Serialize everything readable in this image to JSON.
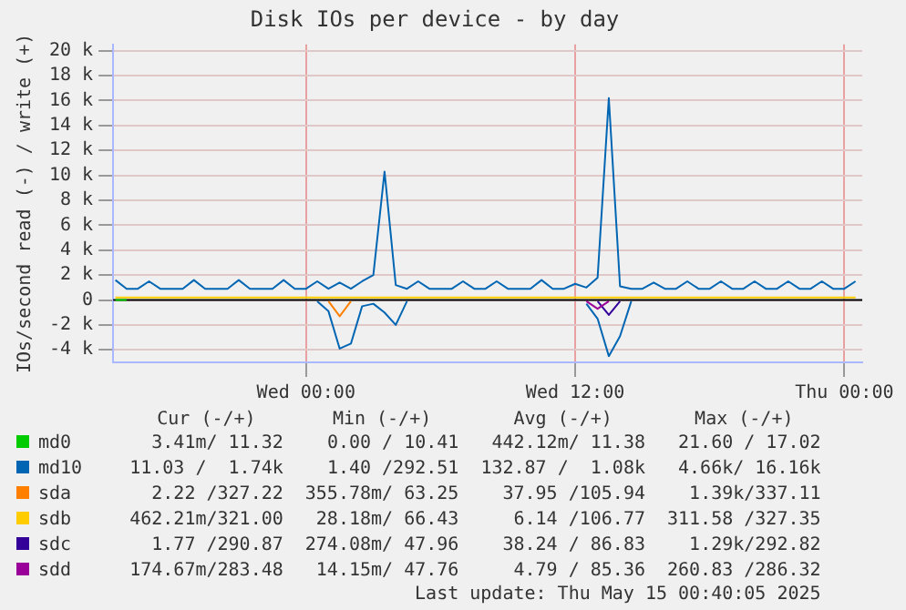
{
  "chart_data": {
    "type": "line",
    "title": "Disk IOs per device - by day",
    "ylabel": "IOs/second read (-) / write (+)",
    "x": [
      "2025-05-13T15:30",
      "2025-05-13T16:00",
      "2025-05-13T16:30",
      "2025-05-13T17:00",
      "2025-05-13T17:30",
      "2025-05-13T18:00",
      "2025-05-13T18:30",
      "2025-05-13T19:00",
      "2025-05-13T19:30",
      "2025-05-13T20:00",
      "2025-05-13T20:30",
      "2025-05-13T21:00",
      "2025-05-13T21:30",
      "2025-05-13T22:00",
      "2025-05-13T22:30",
      "2025-05-13T23:00",
      "2025-05-13T23:30",
      "2025-05-14T00:00",
      "2025-05-14T00:30",
      "2025-05-14T01:00",
      "2025-05-14T01:30",
      "2025-05-14T02:00",
      "2025-05-14T02:30",
      "2025-05-14T03:00",
      "2025-05-14T03:30",
      "2025-05-14T04:00",
      "2025-05-14T04:30",
      "2025-05-14T05:00",
      "2025-05-14T05:30",
      "2025-05-14T06:00",
      "2025-05-14T06:30",
      "2025-05-14T07:00",
      "2025-05-14T07:30",
      "2025-05-14T08:00",
      "2025-05-14T08:30",
      "2025-05-14T09:00",
      "2025-05-14T09:30",
      "2025-05-14T10:00",
      "2025-05-14T10:30",
      "2025-05-14T11:00",
      "2025-05-14T11:30",
      "2025-05-14T12:00",
      "2025-05-14T12:30",
      "2025-05-14T13:00",
      "2025-05-14T13:30",
      "2025-05-14T14:00",
      "2025-05-14T14:30",
      "2025-05-14T15:00",
      "2025-05-14T15:30",
      "2025-05-14T16:00",
      "2025-05-14T16:30",
      "2025-05-14T17:00",
      "2025-05-14T17:30",
      "2025-05-14T18:00",
      "2025-05-14T18:30",
      "2025-05-14T19:00",
      "2025-05-14T19:30",
      "2025-05-14T20:00",
      "2025-05-14T20:30",
      "2025-05-14T21:00",
      "2025-05-14T21:30",
      "2025-05-14T22:00",
      "2025-05-14T22:30",
      "2025-05-14T23:00",
      "2025-05-14T23:30",
      "2025-05-15T00:00",
      "2025-05-15T00:30"
    ],
    "xlim": [
      "2025-05-13T15:24",
      "2025-05-15T00:48"
    ],
    "xticks": [
      {
        "value": "2025-05-14T00:00",
        "label": "Wed 00:00"
      },
      {
        "value": "2025-05-14T12:00",
        "label": "Wed 12:00"
      },
      {
        "value": "2025-05-15T00:00",
        "label": "Thu 00:00"
      }
    ],
    "ylim": [
      -5000,
      20500
    ],
    "yticks": [
      {
        "value": -4000,
        "label": "-4 k"
      },
      {
        "value": -2000,
        "label": "-2 k"
      },
      0,
      {
        "value": 2000,
        "label": "2 k"
      },
      {
        "value": 4000,
        "label": "4 k"
      },
      {
        "value": 6000,
        "label": "6 k"
      },
      {
        "value": 8000,
        "label": "8 k"
      },
      {
        "value": 10000,
        "label": "10 k"
      },
      {
        "value": 12000,
        "label": "12 k"
      },
      {
        "value": 14000,
        "label": "14 k"
      },
      {
        "value": 16000,
        "label": "16 k"
      },
      {
        "value": 18000,
        "label": "18 k"
      },
      {
        "value": 20000,
        "label": "20 k"
      }
    ],
    "grid": true,
    "legend": "bottom",
    "ref_lines": [
      {
        "axis": "y",
        "value": 0,
        "color": "#000000"
      }
    ],
    "series": [
      {
        "name": "md0",
        "color": "#00cc00",
        "x": [
          "2025-05-13T15:30",
          "2025-05-13T16:00"
        ],
        "values": [
          0,
          0
        ]
      },
      {
        "name": "md10",
        "color": "#0066b3",
        "values": [
          1600,
          900,
          900,
          1500,
          900,
          900,
          900,
          1600,
          900,
          900,
          900,
          1600,
          900,
          900,
          900,
          1600,
          900,
          900,
          1500,
          900,
          1400,
          900,
          1500,
          2000,
          10300,
          1200,
          900,
          1500,
          900,
          900,
          900,
          1500,
          900,
          900,
          1500,
          900,
          900,
          900,
          1600,
          900,
          900,
          1300,
          1000,
          1800,
          16200,
          1100,
          900,
          900,
          1400,
          900,
          900,
          1500,
          900,
          900,
          1500,
          900,
          900,
          1500,
          900,
          900,
          1500,
          900,
          900,
          1500,
          900,
          900,
          1500
        ]
      },
      {
        "color": "#0066b3",
        "values": [
          null,
          null,
          null,
          null,
          null,
          null,
          null,
          null,
          null,
          null,
          null,
          null,
          null,
          null,
          null,
          null,
          null,
          null,
          -100,
          -900,
          -3900,
          -3500,
          -500,
          -300,
          -1000,
          -2000,
          -100,
          null,
          null,
          null,
          null,
          null,
          null,
          null,
          null,
          null,
          null,
          null,
          null,
          null,
          null,
          null,
          -300,
          -1500,
          -4500,
          -2900,
          -100,
          null,
          null,
          null,
          null,
          null,
          null,
          null,
          null,
          null,
          null,
          null,
          null,
          null,
          null,
          null,
          null,
          null,
          null,
          null,
          null
        ]
      },
      {
        "name": "sda",
        "color": "#ff8000",
        "x": [
          "2025-05-14T01:00",
          "2025-05-14T01:30",
          "2025-05-14T02:00"
        ],
        "values": [
          -100,
          -1300,
          -100
        ]
      },
      {
        "name": "sdb",
        "color": "#ffcc00",
        "x": [
          "2025-05-13T15:30",
          "2025-05-15T00:30"
        ],
        "values": [
          200,
          200
        ]
      },
      {
        "name": "sdc",
        "color": "#330099",
        "x": [
          "2025-05-14T13:00",
          "2025-05-14T13:30",
          "2025-05-14T14:00"
        ],
        "values": [
          -100,
          -1200,
          -100
        ]
      },
      {
        "name": "sdd",
        "color": "#990099",
        "x": [
          "2025-05-14T12:30",
          "2025-05-14T13:00",
          "2025-05-14T13:30"
        ],
        "values": [
          -100,
          -700,
          -100
        ]
      }
    ],
    "annotations": [
      "Cur (-/+)",
      "Min (-/+)",
      "Avg (-/+)",
      "Max (-/+)",
      "3.41m/ 11.32",
      "0.00 / 10.41",
      "442.12m/ 11.38",
      "21.60 / 17.02",
      "11.03 /  1.74k",
      "1.40 /292.51",
      "132.87 /  1.08k",
      "4.66k/ 16.16k",
      "2.22 /327.22",
      "355.78m/ 63.25",
      "37.95 /105.94",
      "1.39k/337.11",
      "462.21m/321.00",
      "28.18m/ 66.43",
      "6.14 /106.77",
      "311.58 /327.35",
      "1.77 /290.87",
      "274.08m/ 47.96",
      "38.24 / 86.83",
      "1.29k/292.82",
      "174.67m/283.48",
      "14.15m/ 47.76",
      "4.79 / 85.36",
      "260.83 /286.32",
      "Last update: Thu May 15 00:40:05 2025"
    ]
  }
}
